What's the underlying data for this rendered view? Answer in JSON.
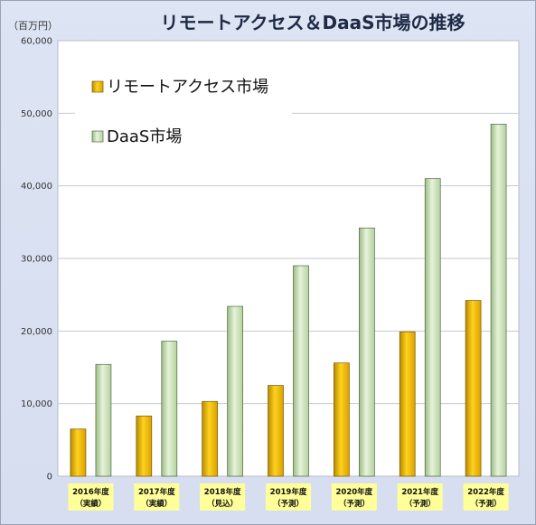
{
  "chart_data": {
    "type": "bar",
    "title": "リモートアクセス＆DaaS市場の推移",
    "unit_label": "（百万円）",
    "categories": [
      {
        "year": "2016年度",
        "status": "（実績）"
      },
      {
        "year": "2017年度",
        "status": "（実績）"
      },
      {
        "year": "2018年度",
        "status": "（見込）"
      },
      {
        "year": "2019年度",
        "status": "（予測）"
      },
      {
        "year": "2020年度",
        "status": "（予測）"
      },
      {
        "year": "2021年度",
        "status": "（予測）"
      },
      {
        "year": "2022年度",
        "status": "（予測）"
      }
    ],
    "series": [
      {
        "name": "リモートアクセス市場",
        "color": "#f2b705",
        "values": [
          6500,
          8300,
          10300,
          12500,
          15600,
          19900,
          24200
        ]
      },
      {
        "name": "DaaS市場",
        "color": "#c8dfb4",
        "values": [
          15400,
          18600,
          23400,
          29000,
          34200,
          41000,
          48500
        ]
      }
    ],
    "ylim": [
      0,
      60000
    ],
    "yticks": [
      "0",
      "10,000",
      "20,000",
      "30,000",
      "40,000",
      "50,000",
      "60,000"
    ],
    "grid": true,
    "legend_position": "top-left",
    "colors": {
      "background": "#d9e1f2",
      "category_label_bg": "#ffff99"
    }
  }
}
